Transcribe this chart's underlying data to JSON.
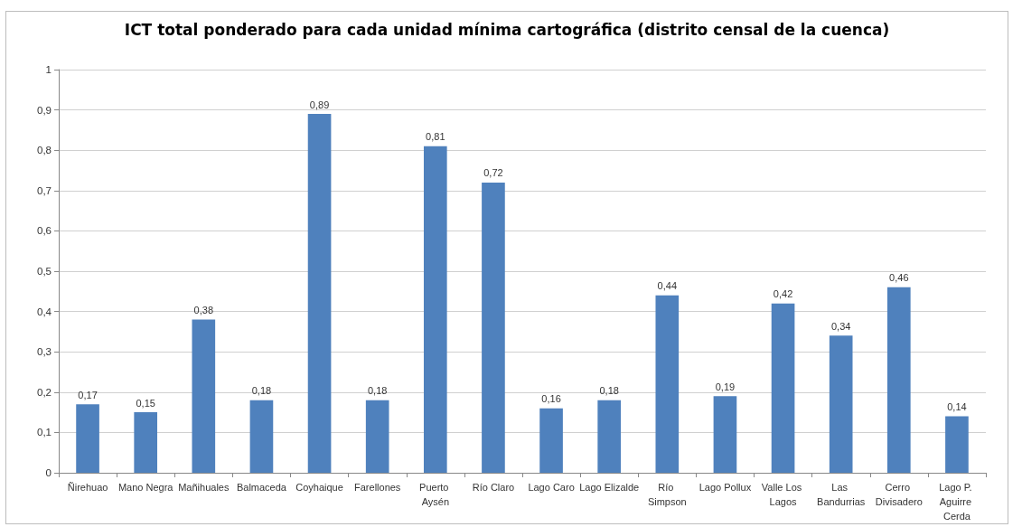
{
  "chart_data": {
    "type": "bar",
    "title": "ICT total ponderado para cada unidad mínima cartográfica (distrito censal de la cuenca)",
    "categories": [
      "Ñirehuao",
      "Mano Negra",
      "Mañihuales",
      "Balmaceda",
      "Coyhaique",
      "Farellones",
      "Puerto Aysén",
      "Río Claro",
      "Lago Caro",
      "Lago Elizalde",
      "Río Simpson",
      "Lago Pollux",
      "Valle Los Lagos",
      "Las Bandurrias",
      "Cerro Divisadero",
      "Lago P. Aguirre Cerda"
    ],
    "values": [
      0.17,
      0.15,
      0.38,
      0.18,
      0.89,
      0.18,
      0.81,
      0.72,
      0.16,
      0.18,
      0.44,
      0.19,
      0.42,
      0.34,
      0.46,
      0.14
    ],
    "value_labels": [
      "0,17",
      "0,15",
      "0,38",
      "0,18",
      "0,89",
      "0,18",
      "0,81",
      "0,72",
      "0,16",
      "0,18",
      "0,44",
      "0,19",
      "0,42",
      "0,34",
      "0,46",
      "0,14"
    ],
    "color": "#4f81bd",
    "ylim": [
      0,
      1
    ],
    "yticks": [
      0,
      {
        "value": 0.1,
        "label": "0,1"
      },
      {
        "value": 0.2,
        "label": "0,2"
      },
      {
        "value": 0.3,
        "label": "0,3"
      },
      {
        "value": 0.4,
        "label": "0,4"
      },
      {
        "value": 0.5,
        "label": "0,5"
      },
      {
        "value": 0.6,
        "label": "0,6"
      },
      {
        "value": 0.7,
        "label": "0,7"
      },
      {
        "value": 0.8,
        "label": "0,8"
      },
      {
        "value": 0.9,
        "label": "0,9"
      },
      1
    ],
    "grid": "y"
  }
}
